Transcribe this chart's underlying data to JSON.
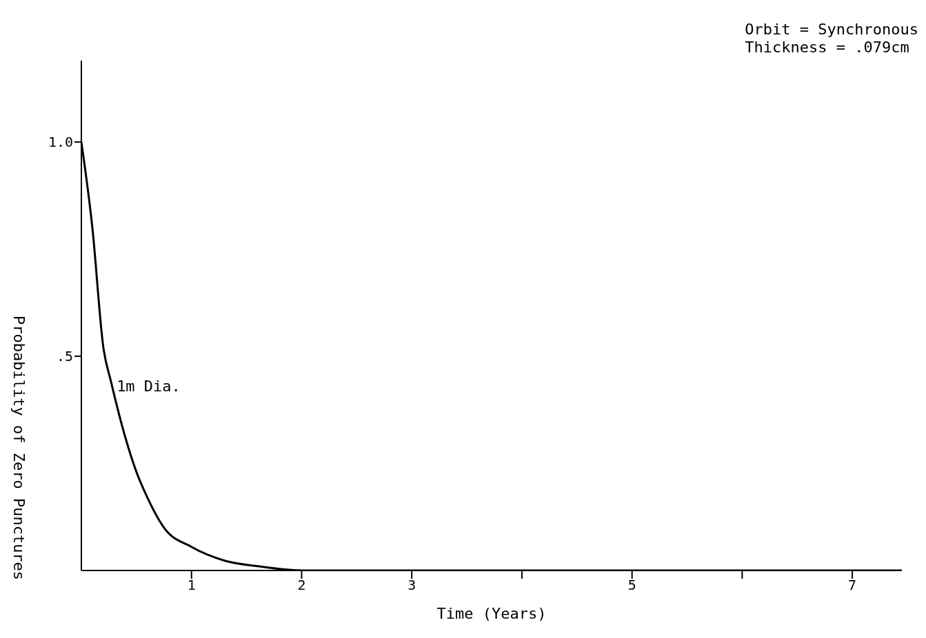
{
  "chart_data": {
    "type": "line",
    "xlabel": "Time (Years)",
    "ylabel": "Probability of Zero Punctures",
    "annotations": [
      "Orbit = Synchronous\nThickness = .079cm"
    ],
    "x": [
      0,
      0.1,
      0.2,
      0.27,
      0.4,
      0.5,
      0.6,
      0.75,
      1.0,
      1.3,
      1.6,
      2.0,
      7.45
    ],
    "series": [
      {
        "name": "1m Dia.",
        "color": "#000000",
        "values": [
          1.0,
          0.8,
          0.52,
          0.44,
          0.31,
          0.23,
          0.17,
          0.1,
          0.055,
          0.023,
          0.01,
          0.0,
          0.0
        ]
      }
    ],
    "xlim": [
      0,
      7.45
    ],
    "xticks": [
      1,
      2,
      3,
      {
        "value": 4,
        "label": null
      },
      5,
      {
        "value": 6,
        "label": null
      },
      7
    ],
    "ylim": [
      0,
      1.19
    ],
    "yticks": [
      {
        "value": 0.5,
        "label": ".5"
      },
      {
        "value": 1,
        "label": "1.0"
      }
    ],
    "grid": false,
    "legend": false,
    "marker": "none",
    "line_style": "solid"
  }
}
